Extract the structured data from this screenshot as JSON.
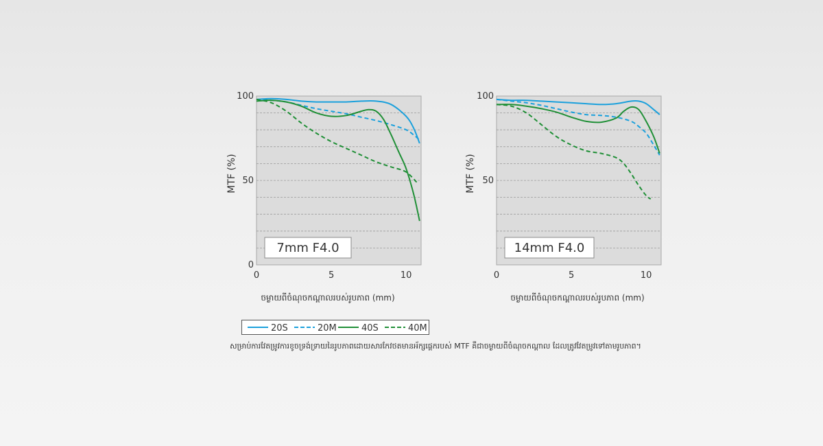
{
  "colors": {
    "blue": "#1aa0dc",
    "green": "#1f8f36",
    "grid": "#9a9a9a",
    "plot_bg": "#dcdcdc",
    "axis_text": "#333333"
  },
  "chart_data": [
    {
      "type": "line",
      "label_box": "7mm F4.0",
      "ylabel": "MTF (%)",
      "xlabel": "ចម្ងាយពីចំណុចកណ្ដាលរបស់រូបភាព (mm)",
      "xlim": [
        0,
        11
      ],
      "ylim": [
        0,
        100
      ],
      "x_ticks": [
        "0",
        "5",
        "10"
      ],
      "y_ticks": [
        "0",
        "50",
        "100"
      ],
      "grid": "dashed horizontal every 10%",
      "series": [
        {
          "name": "20S",
          "color": "blue",
          "style": "solid",
          "x": [
            0,
            1,
            2,
            3,
            4,
            5,
            6,
            7,
            8,
            9,
            10,
            10.5,
            10.9
          ],
          "y": [
            98,
            98.5,
            98,
            97,
            96.5,
            96.5,
            96.5,
            97,
            97,
            95,
            88,
            81,
            72
          ]
        },
        {
          "name": "20M",
          "color": "blue",
          "style": "dashed",
          "x": [
            0,
            1,
            2,
            3,
            4,
            5,
            6,
            7,
            8,
            9,
            10,
            10.5,
            10.9
          ],
          "y": [
            98,
            97.5,
            96.5,
            94.5,
            92.5,
            91,
            89.5,
            87.5,
            85.5,
            83,
            80,
            77,
            74
          ]
        },
        {
          "name": "40S",
          "color": "green",
          "style": "solid",
          "x": [
            0,
            1,
            2,
            3,
            4,
            5,
            6,
            7,
            7.5,
            8,
            8.5,
            9,
            9.5,
            10,
            10.5,
            10.9
          ],
          "y": [
            97,
            97.5,
            96.5,
            94,
            90,
            88,
            88.5,
            91,
            92,
            91,
            86,
            77,
            67,
            57,
            42,
            26
          ]
        },
        {
          "name": "40M",
          "color": "green",
          "style": "dashed",
          "x": [
            0,
            1,
            2,
            3,
            4,
            5,
            6,
            7,
            8,
            9,
            10,
            10.8
          ],
          "y": [
            98,
            96,
            91,
            84,
            78,
            73,
            69,
            65,
            61,
            58,
            55,
            48
          ]
        }
      ]
    },
    {
      "type": "line",
      "label_box": "14mm F4.0",
      "ylabel": "MTF (%)",
      "xlabel": "ចម្ងាយពីចំណុចកណ្ដាលរបស់រូបភាព (mm)",
      "xlim": [
        0,
        11
      ],
      "ylim": [
        0,
        100
      ],
      "x_ticks": [
        "0",
        "5",
        "10"
      ],
      "y_ticks": [
        "50",
        "100"
      ],
      "grid": "dashed horizontal every 10%",
      "series": [
        {
          "name": "20S",
          "color": "blue",
          "style": "solid",
          "x": [
            0,
            1,
            2,
            3,
            4,
            5,
            6,
            7,
            8,
            9,
            9.5,
            10,
            10.5,
            10.9
          ],
          "y": [
            98,
            97.5,
            97.5,
            97,
            96.5,
            96,
            95.5,
            95,
            95.5,
            97,
            97,
            95.5,
            92,
            89
          ]
        },
        {
          "name": "20M",
          "color": "blue",
          "style": "dashed",
          "x": [
            0,
            1,
            2,
            3,
            4,
            5,
            6,
            7,
            8,
            9,
            9.5,
            10,
            10.5,
            10.9
          ],
          "y": [
            98,
            97,
            96,
            94.5,
            92.5,
            90.5,
            89,
            88.5,
            87.5,
            85,
            82,
            78,
            71,
            65
          ]
        },
        {
          "name": "40S",
          "color": "green",
          "style": "solid",
          "x": [
            0,
            1,
            2,
            3,
            4,
            5,
            6,
            7,
            8,
            8.5,
            9,
            9.5,
            10,
            10.5,
            10.9
          ],
          "y": [
            95,
            95,
            94,
            92.5,
            90.5,
            87.5,
            85,
            84.5,
            87,
            91,
            93.5,
            92,
            85,
            76,
            66
          ]
        },
        {
          "name": "40M",
          "color": "green",
          "style": "dashed",
          "x": [
            0,
            1,
            2,
            3,
            4,
            5,
            6,
            7,
            8,
            8.5,
            9,
            9.5,
            10,
            10.3
          ],
          "y": [
            95,
            94,
            90,
            83,
            76,
            71,
            67.5,
            66,
            63.5,
            60,
            54,
            47,
            41,
            39
          ]
        }
      ]
    }
  ],
  "legend": [
    {
      "label": "20S",
      "color": "blue",
      "style": "solid"
    },
    {
      "label": "20M",
      "color": "blue",
      "style": "dashed"
    },
    {
      "label": "40S",
      "color": "green",
      "style": "solid"
    },
    {
      "label": "40M",
      "color": "green",
      "style": "dashed"
    }
  ],
  "footnote": "សម្រាប់ការវែតម្រូវការខូចទ្រង់ទ្រាយនៃរូបភាពដោយសារកែវថតមានអ័ក្សផ្ដេករបស់ MTF គឺជាចម្ងាយពីចំណុចកណ្ដាល ដែលត្រូវវែតម្រូវទៅតាមរូបភាព។"
}
